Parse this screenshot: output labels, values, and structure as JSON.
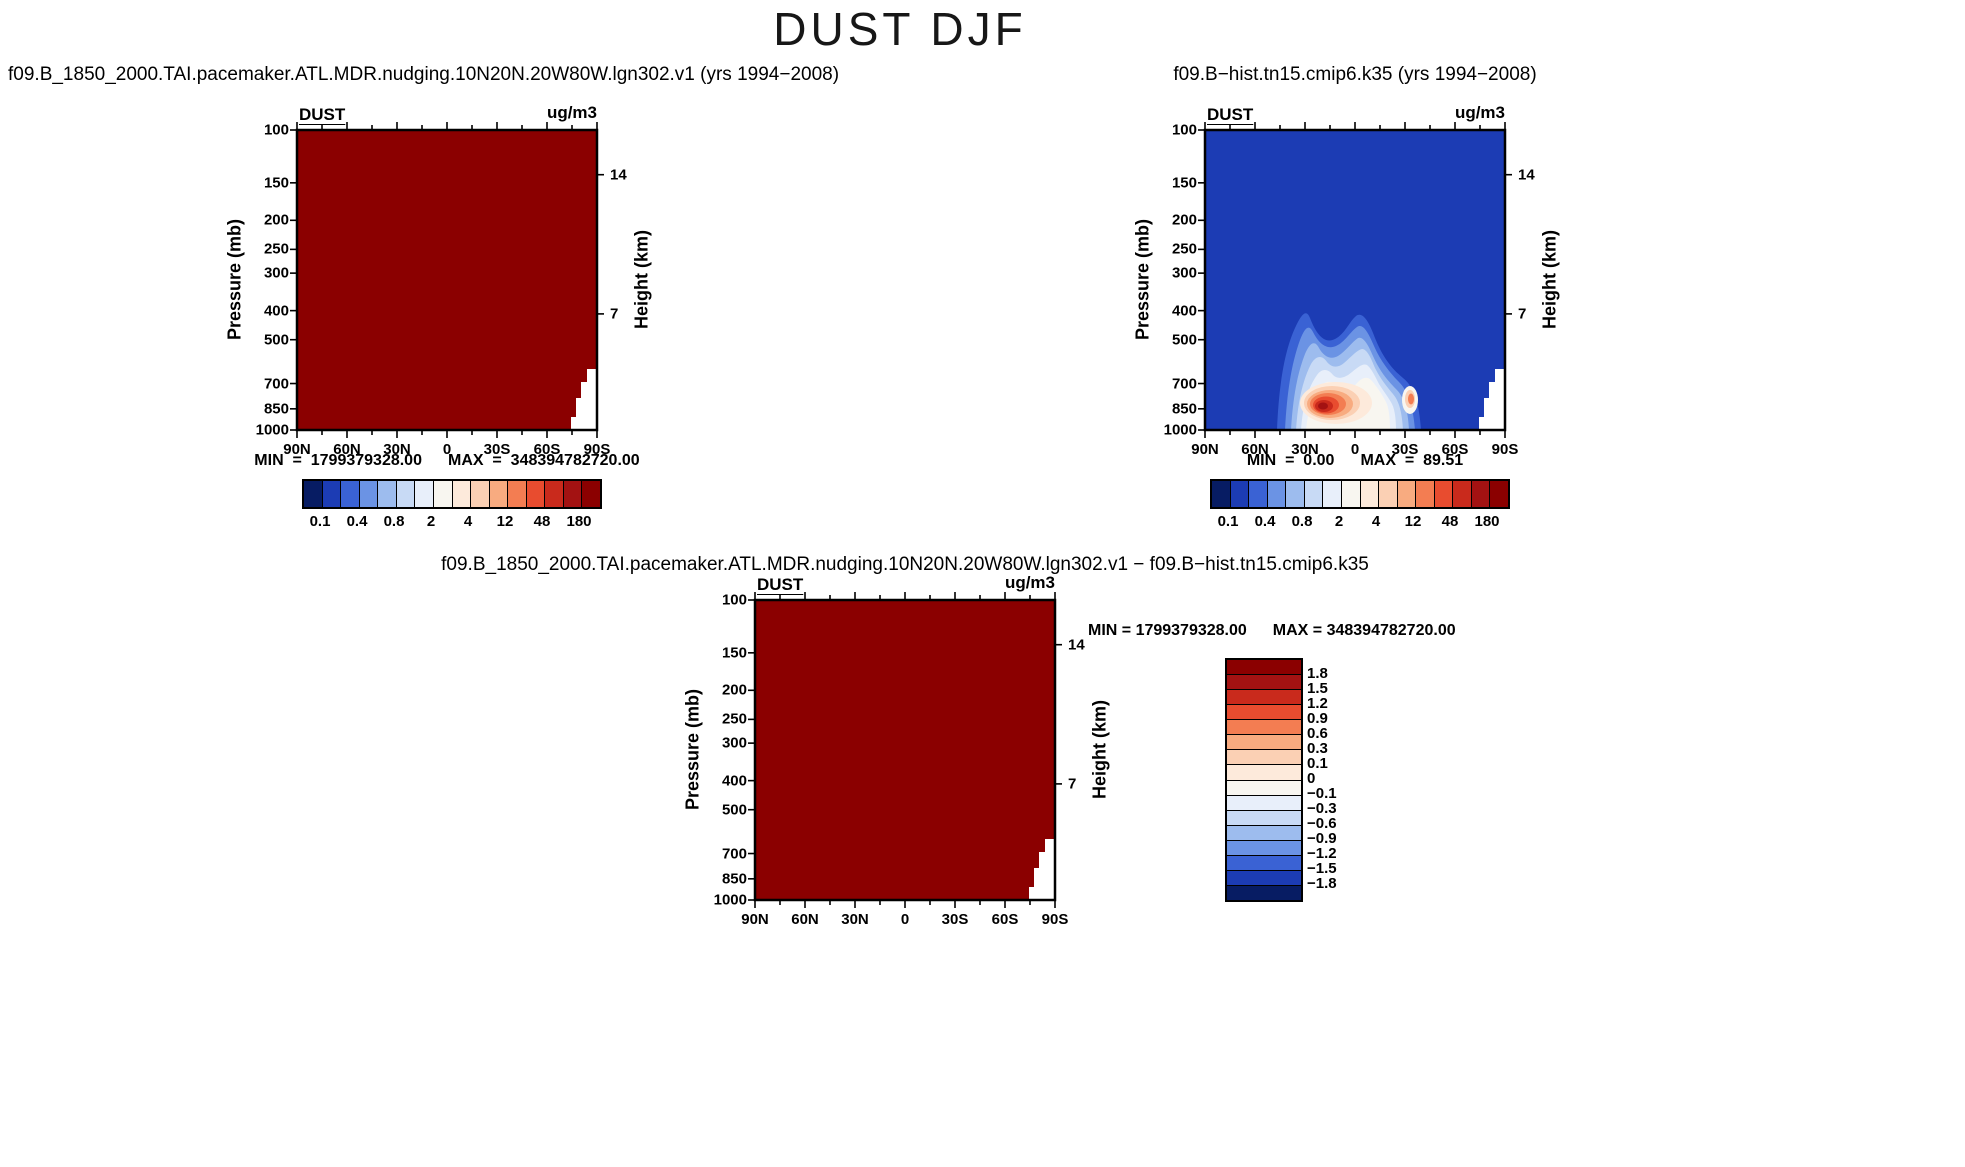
{
  "page": {
    "title": "DUST DJF"
  },
  "axes": {
    "pressure_label": "Pressure (mb)",
    "height_label": "Height (km)",
    "pressure_ticks": [
      "100",
      "150",
      "200",
      "250",
      "300",
      "400",
      "500",
      "700",
      "850",
      "1000"
    ],
    "height_ticks": [
      "14",
      "7"
    ],
    "lat_ticks": [
      "90N",
      "60N",
      "30N",
      "0",
      "30S",
      "60S",
      "90S"
    ]
  },
  "panels": {
    "left": {
      "title": "f09.B_1850_2000.TAI.pacemaker.ATL.MDR.nudging.10N20N.20W80W.lgn302.v1  (yrs 1994−2008)",
      "var_label": "DUST",
      "units": "ug/m3",
      "min_label": "MIN  =  1799379328.00",
      "max_label": "MAX  =  348394782720.00",
      "colorbar_labels": [
        "0.1",
        "0.4",
        "0.8",
        "2",
        "4",
        "12",
        "48",
        "180"
      ]
    },
    "right": {
      "title": "f09.B−hist.tn15.cmip6.k35  (yrs 1994−2008)",
      "var_label": "DUST",
      "units": "ug/m3",
      "min_label": "MIN  =  0.00",
      "max_label": "MAX  =  89.51",
      "colorbar_labels": [
        "0.1",
        "0.4",
        "0.8",
        "2",
        "4",
        "12",
        "48",
        "180"
      ]
    },
    "diff": {
      "title": "f09.B_1850_2000.TAI.pacemaker.ATL.MDR.nudging.10N20N.20W80W.lgn302.v1  −  f09.B−hist.tn15.cmip6.k35",
      "var_label": "DUST",
      "units": "ug/m3",
      "min_label": "MIN = 1799379328.00",
      "max_label": "MAX = 348394782720.00",
      "colorbar_labels": [
        "1.8",
        "1.5",
        "1.2",
        "0.9",
        "0.6",
        "0.3",
        "0.1",
        "0",
        "−0.1",
        "−0.3",
        "−0.6",
        "−0.9",
        "−1.2",
        "−1.5",
        "−1.8"
      ]
    }
  },
  "palette": {
    "colorbar": [
      "#071c63",
      "#1c3cb4",
      "#3a62d4",
      "#6b93e4",
      "#9dbcee",
      "#c8daf5",
      "#e8effa",
      "#f8f6f0",
      "#fdeadb",
      "#fbd0b4",
      "#f8ab80",
      "#f37d52",
      "#e84c2f",
      "#c92a1c",
      "#a31212",
      "#8b0000"
    ],
    "diff_colorbar": [
      "#8b0000",
      "#a31212",
      "#c92a1c",
      "#e84c2f",
      "#f37d52",
      "#f8ab80",
      "#fbd0b4",
      "#fdeadb",
      "#f8f6f0",
      "#e8effa",
      "#c8daf5",
      "#9dbcee",
      "#6b93e4",
      "#3a62d4",
      "#1c3cb4",
      "#071c63"
    ],
    "saturated_field": "#8b0000",
    "right_field_background": "#1c3cb4"
  },
  "chart_data": [
    {
      "type": "heatmap",
      "panel": "case",
      "title": "f09.B_1850_2000.TAI.pacemaker.ATL.MDR.nudging.10N20N.20W80W.lgn302.v1 (yrs 1994−2008)",
      "variable": "DUST",
      "units": "ug/m3",
      "x_ticks": [
        "90N",
        "60N",
        "30N",
        "0",
        "30S",
        "60S",
        "90S"
      ],
      "ylabel": "Pressure (mb)",
      "y_ticks": [
        100,
        150,
        200,
        250,
        300,
        400,
        500,
        700,
        850,
        1000
      ],
      "y2label": "Height (km)",
      "y2_ticks": [
        14,
        7
      ],
      "colorbar_levels": [
        0.1,
        0.4,
        0.8,
        2,
        4,
        12,
        48,
        180
      ],
      "min": 1799379328.0,
      "max": 348394782720.0,
      "field_summary": "Entire latitude-pressure cross-section saturated at the maximum color bin (dark red, >180 ug/m3); small white stepped terrain cutout near 90S below ~700 mb."
    },
    {
      "type": "heatmap",
      "panel": "reference",
      "title": "f09.B−hist.tn15.cmip6.k35 (yrs 1994−2008)",
      "variable": "DUST",
      "units": "ug/m3",
      "x_ticks": [
        "90N",
        "60N",
        "30N",
        "0",
        "30S",
        "60S",
        "90S"
      ],
      "ylabel": "Pressure (mb)",
      "y_ticks": [
        100,
        150,
        200,
        250,
        300,
        400,
        500,
        700,
        850,
        1000
      ],
      "y2label": "Height (km)",
      "y2_ticks": [
        14,
        7
      ],
      "colorbar_levels": [
        0.1,
        0.4,
        0.8,
        2,
        4,
        12,
        48,
        180
      ],
      "min": 0.0,
      "max": 89.51,
      "field_summary": "Background in the lowest bin (dark blue). Dust plume between ~55N and ~35S below ~350 mb with two lobes; maximum (red core, ~48-180 ug/m3) near 850 mb around 30N-10N; secondary maximum near 30S at ~850 mb; white stepped terrain cutout near 90S."
    },
    {
      "type": "heatmap",
      "panel": "difference",
      "title": "f09.B_1850_2000.TAI.pacemaker.ATL.MDR.nudging.10N20N.20W80W.lgn302.v1 − f09.B−hist.tn15.cmip6.k35",
      "variable": "DUST",
      "units": "ug/m3",
      "x_ticks": [
        "90N",
        "60N",
        "30N",
        "0",
        "30S",
        "60S",
        "90S"
      ],
      "ylabel": "Pressure (mb)",
      "y_ticks": [
        100,
        150,
        200,
        250,
        300,
        400,
        500,
        700,
        850,
        1000
      ],
      "y2label": "Height (km)",
      "y2_ticks": [
        14,
        7
      ],
      "colorbar_levels": [
        1.8,
        1.5,
        1.2,
        0.9,
        0.6,
        0.3,
        0.1,
        0,
        -0.1,
        -0.3,
        -0.6,
        -0.9,
        -1.2,
        -1.5,
        -1.8
      ],
      "min": 1799379328.0,
      "max": 348394782720.0,
      "field_summary": "Difference field saturated at the maximum positive bin (dark red, >1.8) everywhere; white stepped terrain cutout near 90S."
    }
  ]
}
